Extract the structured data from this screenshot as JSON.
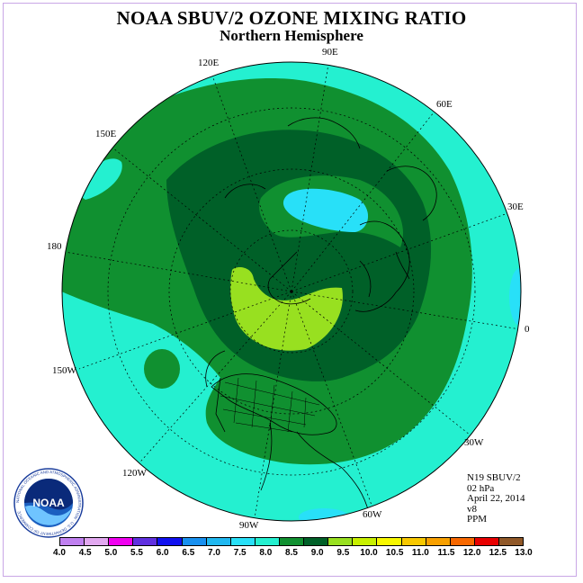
{
  "title": "NOAA SBUV/2 OZONE MIXING RATIO",
  "subtitle": "Northern Hemisphere",
  "longitude_labels": {
    "e90": "90E",
    "e60": "60E",
    "e30": "30E",
    "zero": "0",
    "w30": "30W",
    "w60": "60W",
    "w90": "90W",
    "w120": "120W",
    "w150": "150W",
    "deg180": "180",
    "e150": "150E",
    "e120": "120E"
  },
  "info": {
    "satellite": "N19 SBUV/2",
    "level": "02 hPa",
    "date": "April 22, 2014",
    "version": "v8",
    "units": "PPM"
  },
  "colorbar": {
    "ticks": [
      "4.0",
      "4.5",
      "5.0",
      "5.5",
      "6.0",
      "6.5",
      "7.0",
      "7.5",
      "8.0",
      "8.5",
      "9.0",
      "9.5",
      "10.0",
      "10.5",
      "11.0",
      "11.5",
      "12.0",
      "12.5",
      "13.0"
    ],
    "colors": [
      "#c080f0",
      "#e2a8f0",
      "#f000f0",
      "#6030e0",
      "#1010f0",
      "#1890f0",
      "#20b8f0",
      "#28e0f8",
      "#24f0d0",
      "#109030",
      "#006028",
      "#98e020",
      "#c8f000",
      "#f8f800",
      "#f8c800",
      "#f8a000",
      "#f86800",
      "#e80000",
      "#905828"
    ]
  },
  "logo": {
    "text": "NOAA",
    "ring_text": "NATIONAL OCEANIC AND ATMOSPHERIC ADMINISTRATION · U.S. DEPARTMENT OF COMMERCE"
  },
  "map_colors": {
    "level_7_5_to_8": "#24f0d0",
    "level_8_to_8_5": "#109030",
    "level_8_5_to_9": "#006028",
    "level_9_to_9_5": "#98e020",
    "level_7_to_7_5": "#28e0f8"
  }
}
